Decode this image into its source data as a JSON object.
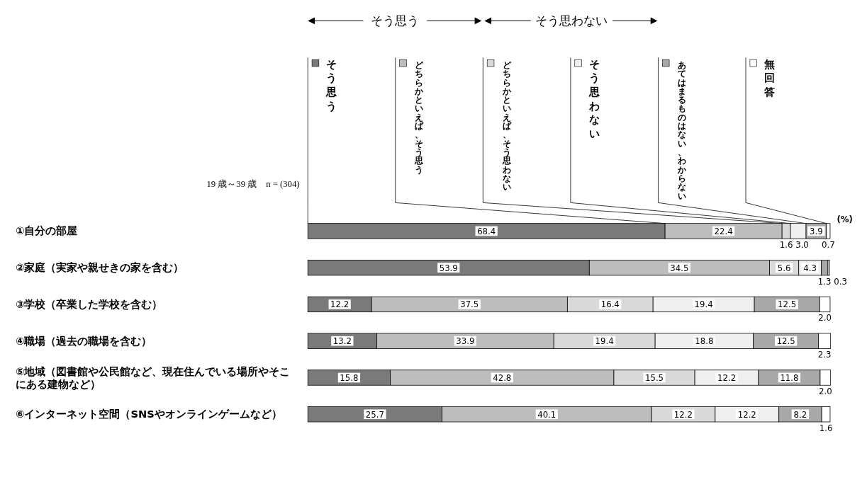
{
  "chart_data": {
    "type": "bar",
    "orientation": "horizontal",
    "stacked": true,
    "legend": "top",
    "categories": [
      "①自分の部屋",
      "②家庭（実家や親せきの家を含む）",
      "③学校（卒業した学校を含む）",
      "④職場（過去の職場を含む）",
      "⑤地域（図書館や公民館など、現在住んでいる場所やそこにある建物など）",
      "⑥インターネット空間（SNSやオンラインゲームなど）"
    ],
    "series": [
      {
        "name": "そう思う",
        "color": "#7a7a7a",
        "values": [
          68.4,
          53.9,
          12.2,
          13.2,
          15.8,
          25.7
        ],
        "value_labels": [
          "68.4",
          "53.9",
          "12.2",
          "13.2",
          "15.8",
          "25.7"
        ]
      },
      {
        "name": "どちらかといえば、そう思う",
        "color": "#bdbdbd",
        "values": [
          22.4,
          34.5,
          37.5,
          33.9,
          42.8,
          40.1
        ],
        "value_labels": [
          "22.4",
          "34.5",
          "37.5",
          "33.9",
          "42.8",
          "40.1"
        ]
      },
      {
        "name": "どちらかといえば、そう思わない",
        "color": "#d9d9d9",
        "values": [
          1.6,
          5.6,
          16.4,
          19.4,
          15.5,
          12.2
        ],
        "value_labels": [
          "1.6",
          "5.6",
          "16.4",
          "19.4",
          "15.5",
          "12.2"
        ]
      },
      {
        "name": "そう思わない",
        "color": "#efefef",
        "values": [
          3.0,
          4.3,
          19.4,
          18.8,
          12.2,
          12.2
        ],
        "value_labels": [
          "3.0",
          "4.3",
          "19.4",
          "18.8",
          "12.2",
          "12.2"
        ]
      },
      {
        "name": "あてはまるものはない、わからない",
        "color": "#a8a8a8",
        "values": [
          3.9,
          1.3,
          12.5,
          12.5,
          11.8,
          8.2
        ],
        "value_labels": [
          "3.9",
          "1.3",
          "12.5",
          "12.5",
          "11.8",
          "8.2"
        ]
      },
      {
        "name": "無回答",
        "color": "#ffffff",
        "values": [
          0.7,
          0.3,
          2.0,
          2.3,
          2.0,
          1.6
        ],
        "value_labels": [
          "0.7",
          "0.3",
          "2.0",
          "2.3",
          "2.0",
          "1.6"
        ]
      }
    ],
    "annotations": [
      "そう思う",
      "そう思わない",
      "19 歳～39 歳　n = (304)",
      "(%)"
    ]
  }
}
